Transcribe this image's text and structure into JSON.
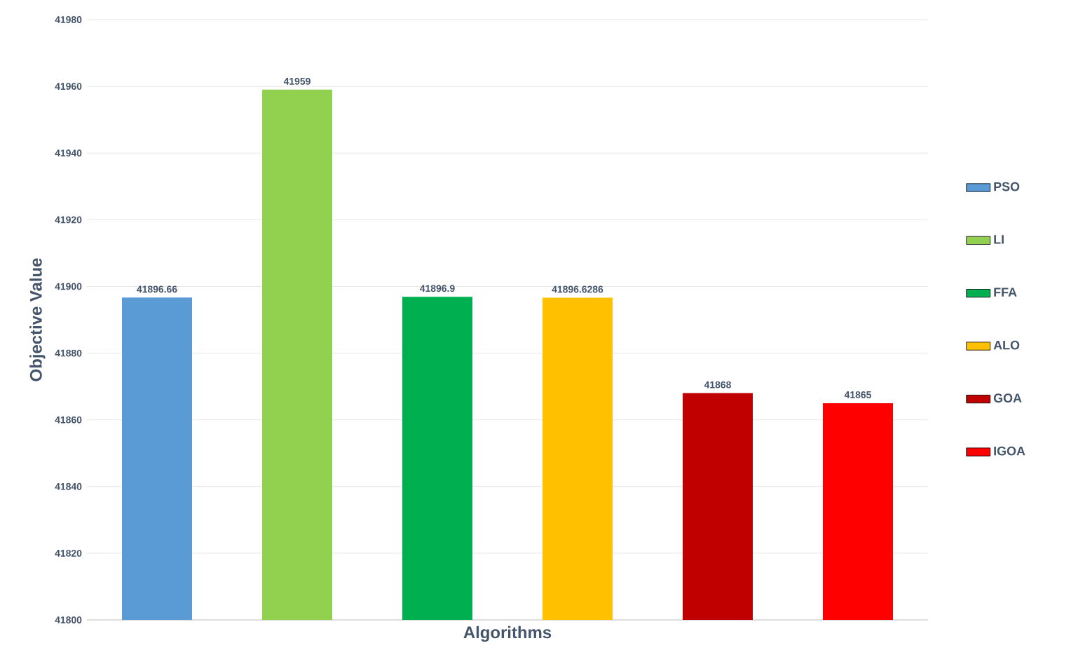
{
  "chart_data": {
    "type": "bar",
    "xlabel": "Algorithms",
    "ylabel": "Objective Value",
    "categories": [
      null,
      null,
      null,
      null,
      null,
      null
    ],
    "series": [
      {
        "name": "PSO",
        "color": "#5b9bd5",
        "values": [
          41896.66,
          null,
          null,
          null,
          null,
          null
        ]
      },
      {
        "name": "LI",
        "color": "#92d050",
        "values": [
          null,
          41959,
          null,
          null,
          null,
          null
        ]
      },
      {
        "name": "FFA",
        "color": "#00b050",
        "values": [
          null,
          null,
          41896.9,
          null,
          null,
          null
        ]
      },
      {
        "name": "ALO",
        "color": "#ffc000",
        "values": [
          null,
          null,
          null,
          41896.6286,
          null,
          null
        ]
      },
      {
        "name": "GOA",
        "color": "#c00000",
        "values": [
          null,
          null,
          null,
          null,
          41868,
          null
        ]
      },
      {
        "name": "IGOA",
        "color": "#ff0000",
        "values": [
          null,
          null,
          null,
          null,
          null,
          41865
        ]
      }
    ],
    "ylim": [
      41800,
      41980
    ],
    "yticks": [
      41800,
      41820,
      41840,
      41860,
      41880,
      41900,
      41920,
      41940,
      41960,
      41980
    ],
    "grid": "y",
    "legend": "right",
    "data_labels": true
  }
}
